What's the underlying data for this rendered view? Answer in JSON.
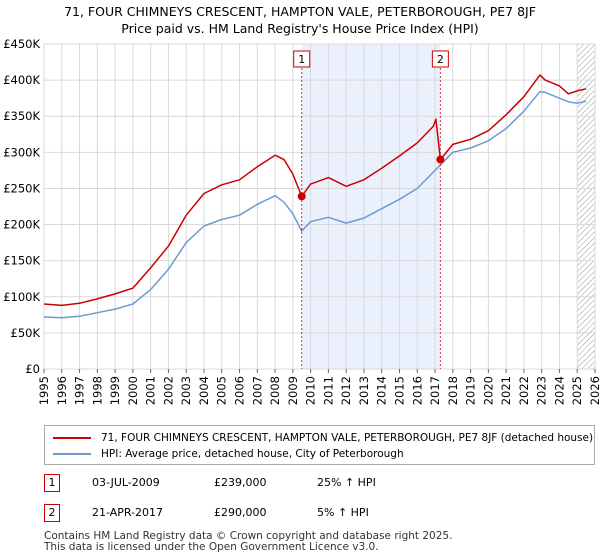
{
  "chart_data": {
    "type": "line",
    "title": "71, FOUR CHIMNEYS CRESCENT, HAMPTON VALE, PETERBOROUGH, PE7 8JF",
    "subtitle": "Price paid vs. HM Land Registry's House Price Index (HPI)",
    "xlim": [
      1995,
      2026
    ],
    "ylim": [
      0,
      450000
    ],
    "x_ticks": [
      1995,
      1996,
      1997,
      1998,
      1999,
      2000,
      2001,
      2002,
      2003,
      2004,
      2005,
      2006,
      2007,
      2008,
      2009,
      2010,
      2011,
      2012,
      2013,
      2014,
      2015,
      2016,
      2017,
      2018,
      2019,
      2020,
      2021,
      2022,
      2023,
      2024,
      2025,
      2026
    ],
    "x_tick_labels": [
      "1995",
      "1996",
      "1997",
      "1998",
      "1999",
      "2000",
      "2001",
      "2002",
      "2003",
      "2004",
      "2005",
      "2006",
      "2007",
      "2008",
      "2009",
      "2010",
      "2011",
      "2012",
      "2013",
      "2014",
      "2015",
      "2016",
      "2017",
      "2018",
      "2019",
      "2020",
      "2021",
      "2022",
      "2023",
      "2024",
      "2025",
      "2026"
    ],
    "y_ticks": [
      0,
      50000,
      100000,
      150000,
      200000,
      250000,
      300000,
      350000,
      400000,
      450000
    ],
    "y_tick_labels": [
      "£0",
      "£50K",
      "£100K",
      "£150K",
      "£200K",
      "£250K",
      "£300K",
      "£350K",
      "£400K",
      "£450K"
    ],
    "grid": true,
    "shaded_region": [
      2009.5,
      2017.3
    ],
    "hatched_from": 2025.0,
    "series": [
      {
        "name": "71, FOUR CHIMNEYS CRESCENT, HAMPTON VALE, PETERBOROUGH, PE7 8JF (detached house)",
        "color": "#cc0000",
        "x": [
          1995,
          1996,
          1997,
          1998,
          1999,
          2000,
          2001,
          2002,
          2003,
          2004,
          2005,
          2006,
          2007,
          2008,
          2008.5,
          2009,
          2009.5,
          2010,
          2011,
          2012,
          2013,
          2014,
          2015,
          2016,
          2016.9,
          2017.05,
          2017.3,
          2018,
          2019,
          2020,
          2021,
          2022,
          2022.9,
          2023.2,
          2024,
          2024.5,
          2025,
          2025.5
        ],
        "y": [
          90000,
          88000,
          91000,
          97000,
          104000,
          112000,
          140000,
          170000,
          213000,
          243000,
          255000,
          262000,
          280000,
          296000,
          290000,
          270000,
          239000,
          256000,
          265000,
          253000,
          262000,
          278000,
          295000,
          313000,
          336000,
          346000,
          290000,
          311000,
          318000,
          330000,
          352000,
          377000,
          407000,
          400000,
          392000,
          381000,
          385000,
          388000
        ]
      },
      {
        "name": "HPI: Average price, detached house, City of Peterborough",
        "color": "#6b9bd2",
        "x": [
          1995,
          1996,
          1997,
          1998,
          1999,
          2000,
          2001,
          2002,
          2003,
          2004,
          2005,
          2006,
          2007,
          2008,
          2008.5,
          2009,
          2009.5,
          2010,
          2011,
          2012,
          2013,
          2014,
          2015,
          2016,
          2017,
          2018,
          2019,
          2020,
          2021,
          2022,
          2022.9,
          2023.2,
          2024,
          2024.5,
          2025,
          2025.5
        ],
        "y": [
          72000,
          71000,
          73000,
          78000,
          83000,
          90000,
          110000,
          138000,
          175000,
          198000,
          207000,
          213000,
          228000,
          240000,
          231000,
          215000,
          191000,
          204000,
          210000,
          202000,
          209000,
          222000,
          235000,
          250000,
          275000,
          300000,
          306000,
          316000,
          333000,
          357000,
          384000,
          383000,
          375000,
          370000,
          368000,
          371000
        ]
      }
    ],
    "annotations": [
      {
        "label": "1",
        "x": 2009.5,
        "y": 239000
      },
      {
        "label": "2",
        "x": 2017.3,
        "y": 290000
      }
    ]
  },
  "legend": {
    "items": [
      {
        "label": "71, FOUR CHIMNEYS CRESCENT, HAMPTON VALE, PETERBOROUGH, PE7 8JF (detached house)",
        "color": "#cc0000"
      },
      {
        "label": "HPI: Average price, detached house, City of Peterborough",
        "color": "#6b9bd2"
      }
    ]
  },
  "sales": [
    {
      "num": "1",
      "date": "03-JUL-2009",
      "price": "£239,000",
      "hpi": "25% ↑ HPI"
    },
    {
      "num": "2",
      "date": "21-APR-2017",
      "price": "£290,000",
      "hpi": "5% ↑ HPI"
    }
  ],
  "footer": {
    "line1": "Contains HM Land Registry data © Crown copyright and database right 2025.",
    "line2": "This data is licensed under the Open Government Licence v3.0."
  }
}
